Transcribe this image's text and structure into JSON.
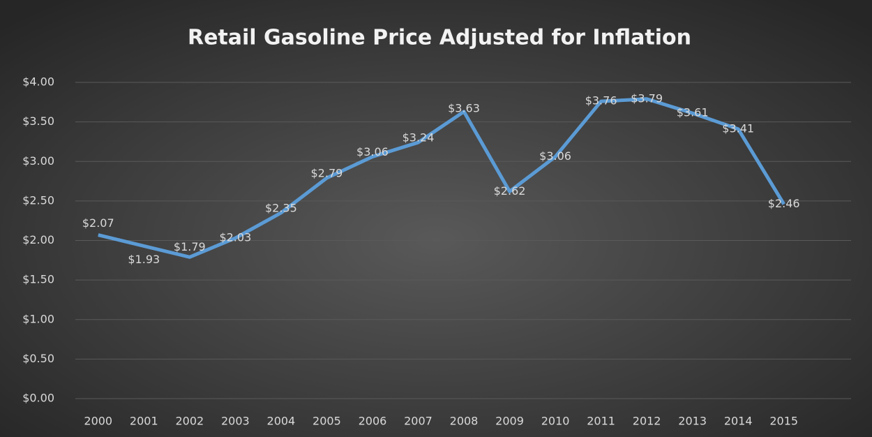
{
  "chart_data": {
    "type": "line",
    "title": "Retail Gasoline Price Adjusted for Inflation",
    "categories": [
      "2000",
      "2001",
      "2002",
      "2003",
      "2004",
      "2005",
      "2006",
      "2007",
      "2008",
      "2009",
      "2010",
      "2011",
      "2012",
      "2013",
      "2014",
      "2015"
    ],
    "series": [
      {
        "name": "Retail Gasoline Price",
        "color": "#5b9bd5",
        "values": [
          2.07,
          1.93,
          1.79,
          2.03,
          2.35,
          2.79,
          3.06,
          3.24,
          3.63,
          2.62,
          3.06,
          3.76,
          3.79,
          3.61,
          3.41,
          2.46
        ],
        "value_labels": [
          "$2.07",
          "$1.93",
          "$1.79",
          "$2.03",
          "$2.35",
          "$2.79",
          "$3.06",
          "$3.24",
          "$3.63",
          "$2.62",
          "$3.06",
          "$3.76",
          "$3.79",
          "$3.61",
          "$3.41",
          "$2.46"
        ]
      }
    ],
    "ylim": [
      0,
      4
    ],
    "yticks": [
      {
        "value": 0,
        "label": "$0.00"
      },
      {
        "value": 0.5,
        "label": "$0.50"
      },
      {
        "value": 1,
        "label": "$1.00"
      },
      {
        "value": 1.5,
        "label": "$1.50"
      },
      {
        "value": 2,
        "label": "$2.00"
      },
      {
        "value": 2.5,
        "label": "$2.50"
      },
      {
        "value": 3,
        "label": "$3.00"
      },
      {
        "value": 3.5,
        "label": "$3.50"
      },
      {
        "value": 4,
        "label": "$4.00"
      }
    ],
    "grid": true
  }
}
